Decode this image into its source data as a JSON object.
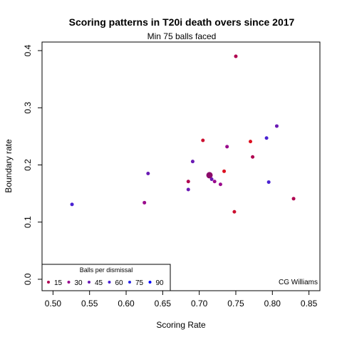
{
  "chart_data": {
    "type": "scatter",
    "title": "Scoring patterns in T20i death overs since 2017",
    "subtitle": "Min 75 balls faced",
    "xlabel": "Scoring Rate",
    "ylabel": "Boundary rate",
    "xlim": [
      0.485,
      0.865
    ],
    "ylim": [
      -0.02,
      0.415
    ],
    "x_ticks": [
      "0.50",
      "0.55",
      "0.60",
      "0.65",
      "0.70",
      "0.75",
      "0.80",
      "0.85"
    ],
    "y_ticks": [
      "0.0",
      "0.1",
      "0.2",
      "0.3",
      "0.4"
    ],
    "grid": false,
    "legend": {
      "title": "Balls per dismissal",
      "placement": "bottom-left",
      "entries": [
        {
          "label": "15",
          "color": "#b00050"
        },
        {
          "label": "30",
          "color": "#9a0a8c"
        },
        {
          "label": "45",
          "color": "#6a1ab4"
        },
        {
          "label": "60",
          "color": "#4a22d2"
        },
        {
          "label": "75",
          "color": "#2a26e6"
        },
        {
          "label": "90",
          "color": "#0000ff"
        }
      ]
    },
    "credit": "CG Williams",
    "points": [
      {
        "x": 0.75,
        "y": 0.39,
        "color": "#b00050"
      },
      {
        "x": 0.806,
        "y": 0.268,
        "color": "#6a1ab4"
      },
      {
        "x": 0.792,
        "y": 0.247,
        "color": "#4a22d2"
      },
      {
        "x": 0.705,
        "y": 0.243,
        "color": "#cc1030"
      },
      {
        "x": 0.77,
        "y": 0.241,
        "color": "#dd1020"
      },
      {
        "x": 0.738,
        "y": 0.232,
        "color": "#9a0a8c"
      },
      {
        "x": 0.773,
        "y": 0.214,
        "color": "#b00050"
      },
      {
        "x": 0.691,
        "y": 0.206,
        "color": "#6a1ab4"
      },
      {
        "x": 0.734,
        "y": 0.189,
        "color": "#dd1020"
      },
      {
        "x": 0.63,
        "y": 0.185,
        "color": "#6a1ab4"
      },
      {
        "x": 0.714,
        "y": 0.182,
        "color": "#8a0a6a",
        "size": 4.5
      },
      {
        "x": 0.717,
        "y": 0.175,
        "color": "#6a1ab4"
      },
      {
        "x": 0.721,
        "y": 0.171,
        "color": "#9a0a8c"
      },
      {
        "x": 0.685,
        "y": 0.171,
        "color": "#b00050"
      },
      {
        "x": 0.795,
        "y": 0.17,
        "color": "#4a22d2"
      },
      {
        "x": 0.729,
        "y": 0.166,
        "color": "#9a0a8c"
      },
      {
        "x": 0.685,
        "y": 0.157,
        "color": "#6a1ab4"
      },
      {
        "x": 0.829,
        "y": 0.141,
        "color": "#b00050"
      },
      {
        "x": 0.625,
        "y": 0.134,
        "color": "#9a0a8c"
      },
      {
        "x": 0.526,
        "y": 0.131,
        "color": "#4a22d2"
      },
      {
        "x": 0.748,
        "y": 0.118,
        "color": "#cc1030"
      }
    ]
  }
}
